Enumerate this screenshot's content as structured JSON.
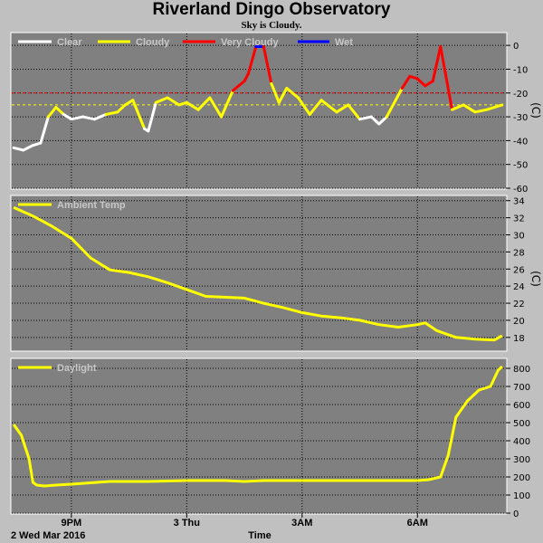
{
  "title": "Riverland Dingo Observatory",
  "subtitle": "Sky is Cloudy.",
  "colors": {
    "background": "#c0c0c0",
    "plot_bg": "#808080",
    "grid": "#000000",
    "clear": "#ffffff",
    "cloudy": "#ffff00",
    "very_cloudy": "#ff0000",
    "wet": "#0000ff"
  },
  "chart_data": [
    {
      "type": "line",
      "name": "sky",
      "legend": [
        "Clear",
        "Cloudy",
        "Very Cloudy",
        "Wet"
      ],
      "unit": "(C)",
      "ylim": [
        -60,
        5
      ],
      "yticks": [
        0,
        -10,
        -20,
        -30,
        -40,
        -50,
        -60
      ],
      "thresholds": [
        {
          "value": -20,
          "color": "#ff0000"
        },
        {
          "value": -25,
          "color": "#ffff00"
        }
      ],
      "x": [
        19.5,
        19.75,
        20.0,
        20.2,
        20.4,
        20.6,
        20.8,
        21.0,
        21.3,
        21.6,
        21.9,
        22.2,
        22.4,
        22.6,
        22.9,
        23.0,
        23.2,
        23.5,
        23.8,
        24.0,
        24.3,
        24.6,
        24.9,
        25.2,
        25.5,
        25.6,
        25.8,
        26.0,
        26.2,
        26.4,
        26.6,
        26.9,
        27.2,
        27.5,
        27.9,
        28.2,
        28.5,
        28.8,
        29.0,
        29.2,
        29.3,
        29.6,
        29.8,
        30.0,
        30.2,
        30.4,
        30.6,
        30.9,
        31.2,
        31.5,
        31.8,
        32.2
      ],
      "y": [
        -43,
        -44,
        -42,
        -41,
        -30,
        -26,
        -29,
        -31,
        -30,
        -31,
        -29,
        -28,
        -25,
        -23,
        -35,
        -36,
        -24,
        -22,
        -25,
        -24,
        -27,
        -22,
        -30,
        -19,
        -15,
        -12,
        -0.5,
        -0.5,
        -16,
        -24,
        -18,
        -22,
        -29,
        -23,
        -28,
        -25,
        -31,
        -30,
        -33,
        -30,
        -27,
        -18,
        -13,
        -14,
        -17,
        -15,
        -0.5,
        -27,
        -25,
        -28,
        -27,
        -25
      ]
    },
    {
      "type": "line",
      "name": "ambient",
      "legend": [
        "Ambient Temp"
      ],
      "unit": "(C)",
      "ylim": [
        16.5,
        34.5
      ],
      "yticks": [
        34,
        32,
        30,
        28,
        26,
        24,
        22,
        20,
        18
      ],
      "x": [
        19.5,
        20.0,
        20.5,
        21.0,
        21.5,
        22.0,
        22.5,
        23.0,
        23.5,
        24.0,
        24.5,
        25.0,
        25.5,
        26.0,
        26.5,
        27.0,
        27.5,
        28.0,
        28.5,
        29.0,
        29.5,
        30.0,
        30.2,
        30.5,
        31.0,
        31.5,
        32.0,
        32.2
      ],
      "y": [
        33.2,
        32.2,
        31,
        29.6,
        27.3,
        25.9,
        25.6,
        25.1,
        24.4,
        23.6,
        22.8,
        22.7,
        22.6,
        22.0,
        21.5,
        20.9,
        20.5,
        20.3,
        20.0,
        19.5,
        19.2,
        19.5,
        19.7,
        18.8,
        18.0,
        17.8,
        17.7,
        18.2
      ]
    },
    {
      "type": "line",
      "name": "daylight",
      "legend": [
        "Daylight"
      ],
      "unit": "",
      "ylim": [
        0,
        850
      ],
      "yticks": [
        800,
        700,
        600,
        500,
        400,
        300,
        200,
        100,
        0
      ],
      "x": [
        19.5,
        19.7,
        19.9,
        20.0,
        20.1,
        20.3,
        20.6,
        21.0,
        22.0,
        23.0,
        24.0,
        25.0,
        25.5,
        26.0,
        27.0,
        28.0,
        29.0,
        30.0,
        30.3,
        30.6,
        30.8,
        31.0,
        31.3,
        31.6,
        31.9,
        32.1,
        32.2
      ],
      "y": [
        490,
        430,
        300,
        170,
        155,
        150,
        155,
        160,
        175,
        175,
        180,
        180,
        175,
        180,
        180,
        180,
        180,
        180,
        185,
        200,
        320,
        530,
        620,
        680,
        700,
        790,
        810
      ]
    }
  ],
  "x_axis": {
    "ticks": [
      {
        "label": "9PM",
        "x": 21
      },
      {
        "label": "3 Thu",
        "x": 24
      },
      {
        "label": "3AM",
        "x": 27
      },
      {
        "label": "6AM",
        "x": 30
      }
    ],
    "grid": [
      21,
      24,
      27,
      30
    ],
    "xlim": [
      19.45,
      32.3
    ],
    "date_label": "2 Wed Mar 2016",
    "label": "Time"
  }
}
